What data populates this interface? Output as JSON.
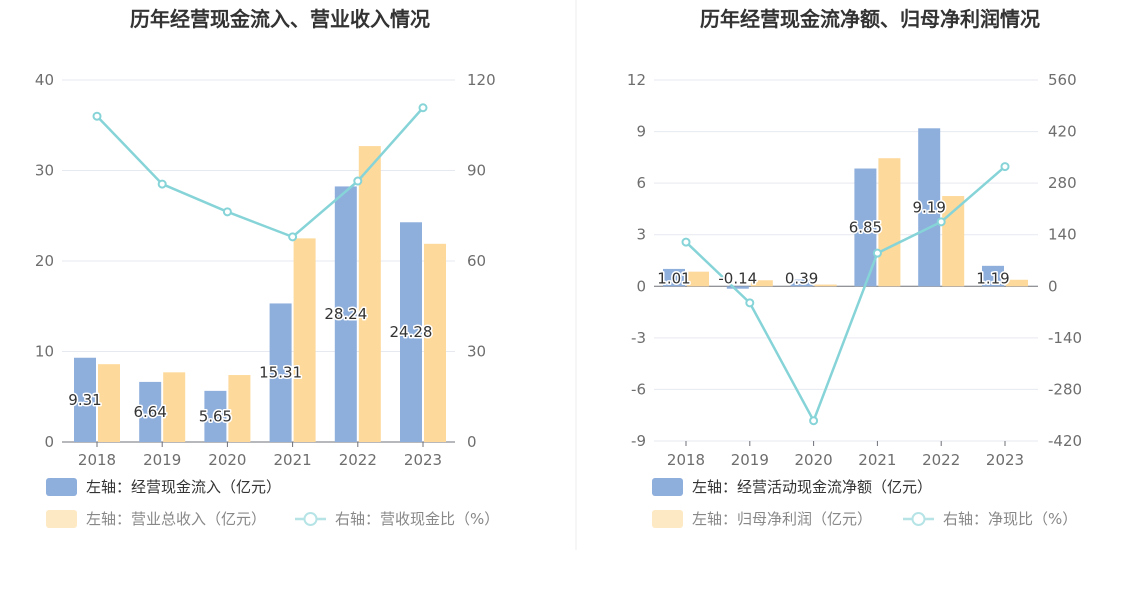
{
  "chart_data": [
    {
      "type": "bar",
      "title": "历年经营现金流入、营业收入情况",
      "categories": [
        "2018",
        "2019",
        "2020",
        "2021",
        "2022",
        "2023"
      ],
      "y_left": {
        "ticks": [
          "0",
          "10",
          "20",
          "30",
          "40"
        ],
        "min": 0,
        "max": 40
      },
      "y_right": {
        "ticks": [
          "0",
          "30",
          "60",
          "90",
          "120"
        ],
        "min": 0,
        "max": 120
      },
      "grid": true,
      "legend_position": "bottom-left",
      "series": [
        {
          "name": "左轴：经营现金流入（亿元）",
          "type": "bar",
          "axis": "left",
          "color": "#8eaedc",
          "values": [
            9.31,
            6.64,
            5.65,
            15.31,
            28.24,
            24.28
          ],
          "labels": [
            "9.31",
            "6.64",
            "5.65",
            "15.31",
            "28.24",
            "24.28"
          ]
        },
        {
          "name": "左轴：营业总收入（亿元）",
          "type": "bar",
          "axis": "left",
          "color": "#fdd99b",
          "values": [
            8.6,
            7.7,
            7.4,
            22.5,
            32.7,
            21.9
          ]
        },
        {
          "name": "右轴：营收现金比（%）",
          "type": "line",
          "axis": "right",
          "color": "#86d4d8",
          "values": [
            108,
            85.5,
            76.3,
            68,
            86.5,
            110.8
          ]
        }
      ]
    },
    {
      "type": "bar",
      "title": "历年经营现金流净额、归母净利润情况",
      "categories": [
        "2018",
        "2019",
        "2020",
        "2021",
        "2022",
        "2023"
      ],
      "y_left": {
        "ticks": [
          "-9",
          "-6",
          "-3",
          "0",
          "3",
          "6",
          "9",
          "12"
        ],
        "min": -9,
        "max": 12
      },
      "y_right": {
        "ticks": [
          "-420",
          "-280",
          "-140",
          "0",
          "140",
          "280",
          "420",
          "560"
        ],
        "min": -420,
        "max": 560
      },
      "grid": true,
      "legend_position": "bottom-left",
      "series": [
        {
          "name": "左轴：经营活动现金流净额（亿元）",
          "type": "bar",
          "axis": "left",
          "color": "#8eaedc",
          "values": [
            1.01,
            -0.14,
            0.39,
            6.85,
            9.19,
            1.19
          ],
          "labels": [
            "1.01",
            "-0.14",
            "0.39",
            "6.85",
            "9.19",
            "1.19"
          ]
        },
        {
          "name": "左轴：归母净利润（亿元）",
          "type": "bar",
          "axis": "left",
          "color": "#fdd99b",
          "values": [
            0.85,
            0.35,
            0.1,
            7.45,
            5.25,
            0.38
          ]
        },
        {
          "name": "右轴：净现比（%）",
          "type": "line",
          "axis": "right",
          "color": "#86d4d8",
          "values": [
            120,
            -45,
            -365,
            90,
            175,
            325
          ]
        }
      ]
    }
  ]
}
